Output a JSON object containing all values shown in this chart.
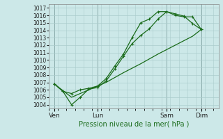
{
  "xlabel": "Pression niveau de la mer( hPa )",
  "ylim": [
    1003.5,
    1017.5
  ],
  "yticks": [
    1004,
    1005,
    1006,
    1007,
    1008,
    1009,
    1010,
    1011,
    1012,
    1013,
    1014,
    1015,
    1016,
    1017
  ],
  "bg_color": "#cce8e8",
  "grid_color": "#aacccc",
  "line_color": "#1a6b1a",
  "xtick_labels": [
    "Ven",
    "Lun",
    "Sam",
    "Dim"
  ],
  "xtick_positions": [
    0,
    2.5,
    6.5,
    8.5
  ],
  "xlim": [
    -0.3,
    9.5
  ],
  "line1_x": [
    0,
    0.5,
    1.0,
    1.5,
    2.0,
    2.5,
    3.0,
    3.5,
    4.0,
    4.5,
    5.0,
    5.5,
    6.0,
    6.5,
    7.0,
    7.5,
    8.0,
    8.5
  ],
  "line1_y": [
    1006.8,
    1005.8,
    1004.0,
    1005.0,
    1006.1,
    1006.3,
    1007.2,
    1008.8,
    1010.5,
    1012.2,
    1013.3,
    1014.2,
    1015.5,
    1016.5,
    1016.2,
    1015.9,
    1014.9,
    1014.1
  ],
  "line2_x": [
    0,
    0.5,
    1.0,
    1.5,
    2.0,
    2.5,
    3.0,
    3.5,
    4.0,
    4.5,
    5.0,
    5.5,
    6.0,
    6.5,
    7.0,
    7.5,
    8.0,
    8.5
  ],
  "line2_y": [
    1006.8,
    1005.8,
    1005.5,
    1006.0,
    1006.2,
    1006.5,
    1007.5,
    1009.2,
    1010.8,
    1013.0,
    1015.0,
    1015.5,
    1016.5,
    1016.5,
    1016.0,
    1015.8,
    1015.8,
    1014.1
  ],
  "line3_x": [
    0,
    1.0,
    2.0,
    3.0,
    4.0,
    5.0,
    6.0,
    7.0,
    8.0,
    8.5
  ],
  "line3_y": [
    1006.8,
    1005.0,
    1006.0,
    1007.0,
    1008.3,
    1009.5,
    1010.8,
    1012.0,
    1013.2,
    1014.1
  ],
  "figsize": [
    3.2,
    2.0
  ],
  "dpi": 100
}
